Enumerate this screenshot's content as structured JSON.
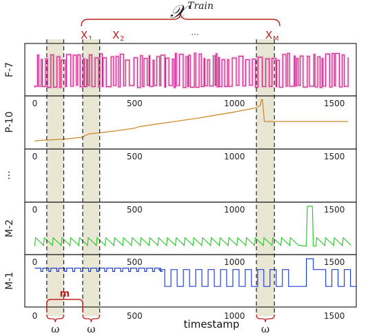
{
  "chart_data": {
    "type": "line",
    "title_math": {
      "base": "𝒳",
      "superscript": "Train"
    },
    "xlabel": "timestamp",
    "xlim": [
      -50,
      1610
    ],
    "x_ticks": [
      "0",
      "500",
      "1000",
      "1500"
    ],
    "window_labels": [
      {
        "base": "X",
        "sub": "1"
      },
      {
        "base": "X",
        "sub": "2"
      },
      {
        "base": "",
        "sub": "",
        "text": "···"
      },
      {
        "base": "X",
        "sub": "M"
      }
    ],
    "windows": [
      {
        "x0": 60,
        "x1": 145
      },
      {
        "x0": 240,
        "x1": 325
      },
      {
        "x0": 1110,
        "x1": 1200
      }
    ],
    "omega_label": "ω",
    "m_label": "m",
    "m_span": [
      60,
      240
    ],
    "colors": {
      "F-7": "#cc1f86",
      "P-10": "#d08a2c",
      "M-2": "#2fc82f",
      "M-1": "#1f3fd6",
      "window_fill": "#e9e6d4",
      "annotation": "#c0201c"
    },
    "series": [
      {
        "name": "F-7",
        "shape": "spiky binary signal between a low baseline and high plateau",
        "x_range": [
          0,
          1570
        ],
        "level_low": 0.12,
        "level_high": 0.85,
        "x_ticks_visible": false
      },
      {
        "name": "P-10",
        "shape": "step-wise increasing ramp with sharp reset",
        "x_range": [
          0,
          1570
        ],
        "points": [
          [
            0,
            0.1
          ],
          [
            10,
            0.12
          ],
          [
            60,
            0.13
          ],
          [
            145,
            0.15
          ],
          [
            240,
            0.19
          ],
          [
            250,
            0.22
          ],
          [
            270,
            0.26
          ],
          [
            320,
            0.28
          ],
          [
            400,
            0.32
          ],
          [
            500,
            0.38
          ],
          [
            520,
            0.41
          ],
          [
            600,
            0.46
          ],
          [
            700,
            0.52
          ],
          [
            800,
            0.58
          ],
          [
            900,
            0.65
          ],
          [
            1000,
            0.72
          ],
          [
            1100,
            0.8
          ],
          [
            1130,
            0.86
          ],
          [
            1135,
            0.98
          ],
          [
            1140,
            0.98
          ],
          [
            1150,
            0.52
          ],
          [
            1570,
            0.52
          ]
        ]
      },
      {
        "name": "···",
        "shape": "empty placeholder panel",
        "x_range": [
          0,
          1570
        ]
      },
      {
        "name": "M-2",
        "shape": "periodic sawtooth with a tall spike near x≈1380",
        "x_range": [
          0,
          1570
        ],
        "period": 44,
        "level_low": 0.12,
        "level_high": 0.3,
        "spike": {
          "x0": 1360,
          "x1": 1395,
          "value": 0.97
        }
      },
      {
        "name": "M-1",
        "shape": "small square pulses then large square pulses after x≈620, spike near x≈1380",
        "x_range": [
          0,
          1570
        ],
        "small_pulse": {
          "until": 620,
          "period": 40,
          "low": 0.7,
          "high": 0.77
        },
        "large_pulse": {
          "from": 620,
          "period": 62,
          "low": 0.38,
          "high": 0.74
        },
        "spike": {
          "x0": 1360,
          "x1": 1395,
          "value": 0.97
        }
      }
    ],
    "grid": false,
    "legend": "none (series names shown as rotated row labels)"
  }
}
